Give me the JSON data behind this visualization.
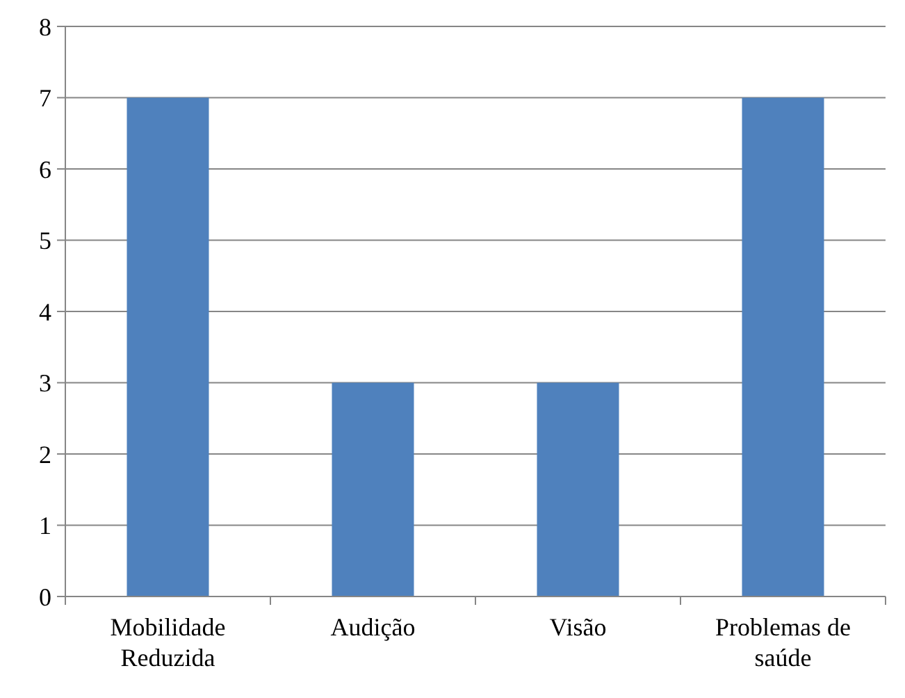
{
  "chart_data": {
    "type": "bar",
    "categories": [
      "Mobilidade Reduzida",
      "Audição",
      "Visão",
      "Problemas de saúde"
    ],
    "values": [
      7,
      3,
      3,
      7
    ],
    "color": "#4f81bd",
    "ylim": [
      0,
      8
    ],
    "yticks": [
      0,
      1,
      2,
      3,
      4,
      5,
      6,
      7,
      8
    ],
    "grid": "y"
  }
}
